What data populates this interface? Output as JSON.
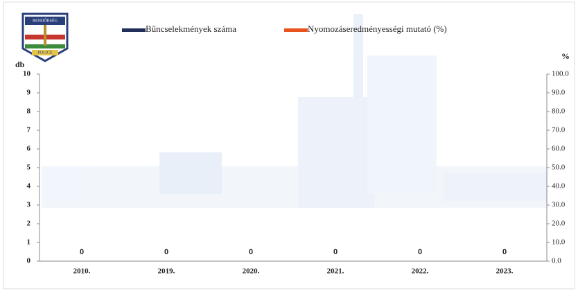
{
  "logo": {
    "top": "RENDŐRSÉG",
    "bottom": "POLICE"
  },
  "chart_data": {
    "type": "bar",
    "y_label": "db",
    "y2_label": "%",
    "categories": [
      "2010.",
      "2019.",
      "2020.",
      "2021.",
      "2022.",
      "2023."
    ],
    "series": [
      {
        "name": "Bűncselekmények száma",
        "color": "#1f2f5a",
        "values": [
          0,
          0,
          0,
          0,
          0,
          0
        ]
      },
      {
        "name": "Nyomozáseredményességi mutató (%)",
        "color": "#e8541e",
        "type": "line",
        "axis": "y2",
        "values": [
          null,
          null,
          null,
          null,
          null,
          null
        ]
      }
    ],
    "ylim": [
      0,
      10
    ],
    "yticks": [
      0,
      1,
      2,
      3,
      4,
      5,
      6,
      7,
      8,
      9,
      10
    ],
    "y2lim": [
      0,
      100
    ],
    "y2ticks": [
      {
        "value": 0,
        "label": "0.0"
      },
      {
        "value": 10,
        "label": "10.0"
      },
      {
        "value": 20,
        "label": "20.0"
      },
      {
        "value": 30,
        "label": "30.0"
      },
      {
        "value": 40,
        "label": "40.0"
      },
      {
        "value": 50,
        "label": "50.0"
      },
      {
        "value": 60,
        "label": "60.0"
      },
      {
        "value": 70,
        "label": "70.0"
      },
      {
        "value": 80,
        "label": "80.0"
      },
      {
        "value": 90,
        "label": "90.0"
      },
      {
        "value": 100,
        "label": "100.0"
      }
    ],
    "grid": false
  }
}
